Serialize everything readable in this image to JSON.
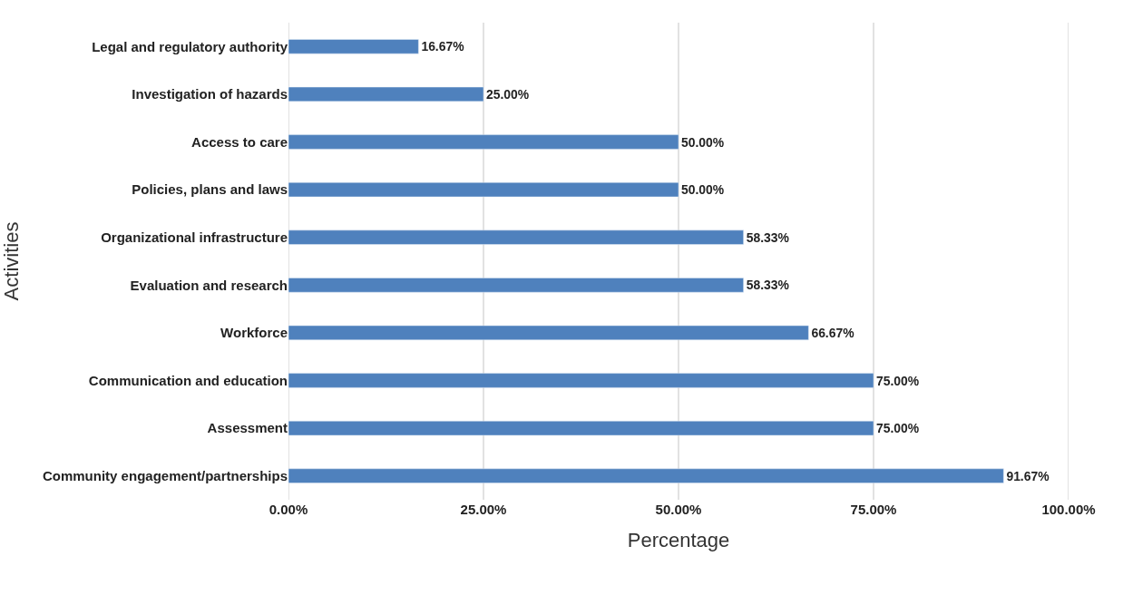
{
  "chart_data": {
    "type": "bar",
    "orientation": "horizontal",
    "xlabel": "Percentage",
    "ylabel": "Activities",
    "categories": [
      "Legal and regulatory authority",
      "Investigation of hazards",
      "Access to care",
      "Policies, plans and laws",
      "Organizational infrastructure",
      "Evaluation and research",
      "Workforce",
      "Communication and education",
      "Assessment",
      "Community engagement/partnerships"
    ],
    "values": [
      16.67,
      25.0,
      50.0,
      50.0,
      58.33,
      58.33,
      66.67,
      75.0,
      75.0,
      91.67
    ],
    "value_labels": [
      "16.67%",
      "25.00%",
      "50.00%",
      "50.00%",
      "58.33%",
      "58.33%",
      "66.67%",
      "75.00%",
      "75.00%",
      "91.67%"
    ],
    "color": "#4f81bd",
    "xlim": [
      0,
      100
    ],
    "xticks": [
      {
        "value": 0,
        "label": "0.00%"
      },
      {
        "value": 25,
        "label": "25.00%"
      },
      {
        "value": 50,
        "label": "50.00%"
      },
      {
        "value": 75,
        "label": "75.00%"
      },
      {
        "value": 100,
        "label": "100.00%"
      }
    ],
    "grid": "x"
  }
}
